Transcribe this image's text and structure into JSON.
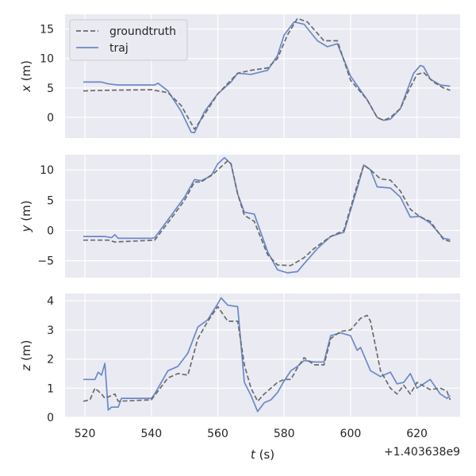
{
  "chart_data": [
    {
      "type": "line",
      "ylabel_var": "x",
      "ylabel_unit": " (m)",
      "ylim": [
        -3.5,
        17.5
      ],
      "yticks": [
        0,
        5,
        10,
        15
      ],
      "legend": "top-left",
      "series": [
        {
          "name": "groundtruth",
          "style": "dashed",
          "color": "#6b6b6b",
          "x": [
            519.5,
            526,
            540,
            545,
            549,
            553,
            556,
            560,
            566,
            570,
            575,
            578,
            581,
            584,
            587,
            592,
            596,
            600,
            605,
            608,
            610,
            612,
            615,
            617,
            620,
            622,
            625,
            628,
            630
          ],
          "y": [
            4.5,
            4.6,
            4.7,
            4.2,
            2,
            -2,
            0.5,
            4,
            7.5,
            8,
            8.4,
            10,
            14,
            16.8,
            16.2,
            13,
            13,
            6.3,
            3,
            0,
            -0.5,
            0,
            1.5,
            4,
            7.3,
            7.6,
            6,
            5,
            4.6
          ]
        },
        {
          "name": "traj",
          "style": "solid",
          "color": "#6a89c8",
          "x": [
            519.5,
            525,
            527,
            530,
            541,
            542,
            545,
            549,
            552,
            553,
            556,
            560,
            564,
            566,
            570,
            575,
            578,
            580,
            583,
            586,
            590,
            593,
            596,
            600,
            605,
            608,
            610,
            612,
            615,
            617,
            619,
            621,
            622,
            624,
            627,
            630
          ],
          "y": [
            6,
            6,
            5.7,
            5.5,
            5.5,
            5.8,
            4.5,
            1,
            -2.5,
            -2.6,
            1,
            4,
            6,
            7.5,
            7.3,
            8,
            10.5,
            14,
            16.2,
            15.8,
            13,
            12,
            12.5,
            7,
            3,
            0,
            -0.5,
            -0.3,
            1.5,
            4.5,
            7.5,
            8.8,
            8.6,
            6.5,
            5.5,
            5.3
          ]
        }
      ]
    },
    {
      "type": "line",
      "ylabel_var": "y",
      "ylabel_unit": " (m)",
      "ylim": [
        -7.8,
        12.5
      ],
      "yticks": [
        -5,
        0,
        5,
        10
      ],
      "series": [
        {
          "name": "groundtruth",
          "style": "dashed",
          "color": "#6b6b6b",
          "x": [
            519.5,
            527,
            529,
            541,
            546,
            550,
            553,
            555,
            559,
            563,
            564,
            566,
            568,
            571,
            575,
            578,
            582,
            586,
            589,
            594,
            598,
            602,
            604,
            606,
            609,
            612,
            615,
            618,
            621,
            624,
            628,
            630
          ],
          "y": [
            -1.6,
            -1.6,
            -1.9,
            -1.6,
            2,
            5,
            8,
            8,
            9.5,
            11.5,
            11,
            6,
            2.5,
            1.5,
            -4,
            -5.7,
            -5.8,
            -4.5,
            -3,
            -1,
            0,
            7.5,
            10.8,
            10,
            8.5,
            8.3,
            6.5,
            3.5,
            2.2,
            1.5,
            -1.5,
            -1.8
          ]
        },
        {
          "name": "traj",
          "style": "solid",
          "color": "#6a89c8",
          "x": [
            519.5,
            526,
            528,
            529,
            530,
            540,
            541,
            546,
            550,
            553,
            555,
            558,
            560,
            562,
            564,
            566,
            568,
            571,
            575,
            578,
            581,
            584,
            586,
            590,
            594,
            598,
            602,
            604,
            606,
            608,
            612,
            615,
            618,
            621,
            624,
            628,
            630
          ],
          "y": [
            -1,
            -1,
            -1.2,
            -0.7,
            -1.3,
            -1.3,
            -1.2,
            2.5,
            5.5,
            8.4,
            8.2,
            9,
            11,
            12,
            11,
            6,
            3,
            2.7,
            -3.5,
            -6.5,
            -7,
            -6.8,
            -5.5,
            -3,
            -1,
            -0.3,
            7,
            10.8,
            10,
            7.2,
            7,
            5.5,
            2.2,
            2.3,
            1.2,
            -1.3,
            -1.5
          ]
        }
      ]
    },
    {
      "type": "line",
      "ylabel_var": "z",
      "ylabel_unit": " (m)",
      "xlabel_var": "t",
      "xlabel_unit": " (s)",
      "xlim": [
        514,
        633
      ],
      "xticks": [
        520,
        540,
        560,
        580,
        600,
        620
      ],
      "offset_label": "+1.403638e9",
      "ylim": [
        0,
        4.25
      ],
      "yticks": [
        0,
        1,
        2,
        3,
        4
      ],
      "series": [
        {
          "name": "groundtruth",
          "style": "dashed",
          "color": "#6b6b6b",
          "x": [
            519.5,
            521.5,
            523,
            525,
            526,
            527,
            529,
            530,
            540,
            545,
            548,
            551,
            554,
            557,
            560,
            563,
            566,
            568,
            570,
            572,
            574,
            576,
            578,
            580,
            582,
            584,
            586,
            589,
            592,
            594,
            597,
            600,
            603,
            605,
            606,
            609,
            612,
            614,
            616,
            618,
            620,
            624,
            627,
            629,
            630
          ],
          "y": [
            0.55,
            0.6,
            1,
            0.8,
            0.65,
            0.7,
            0.8,
            0.55,
            0.6,
            1.35,
            1.5,
            1.45,
            2.7,
            3.3,
            3.8,
            3.3,
            3.3,
            1.8,
            1,
            0.55,
            0.8,
            1,
            1.2,
            1.3,
            1.3,
            1.7,
            2.05,
            1.8,
            1.8,
            2.7,
            2.95,
            3,
            3.4,
            3.5,
            3.3,
            1.6,
            1,
            0.8,
            1.1,
            0.8,
            1.2,
            0.95,
            1,
            0.9,
            0.6
          ]
        },
        {
          "name": "traj",
          "style": "solid",
          "color": "#6a89c8",
          "x": [
            519.5,
            523,
            524,
            525,
            526,
            527,
            528,
            530,
            531,
            540,
            541,
            545,
            548,
            551,
            554,
            557,
            560,
            561,
            563,
            566,
            568,
            570,
            572,
            574,
            576,
            578,
            580,
            582,
            584,
            586,
            589,
            592,
            594,
            597,
            600,
            602,
            603,
            606,
            609,
            612,
            614,
            616,
            618,
            620,
            624,
            627,
            629,
            630
          ],
          "y": [
            1.3,
            1.3,
            1.55,
            1.45,
            1.85,
            0.25,
            0.35,
            0.35,
            0.65,
            0.65,
            0.8,
            1.6,
            1.75,
            2.2,
            3.1,
            3.35,
            3.9,
            4.1,
            3.85,
            3.8,
            1.2,
            0.75,
            0.2,
            0.5,
            0.6,
            0.85,
            1.25,
            1.6,
            1.75,
            1.95,
            1.9,
            1.9,
            2.8,
            2.9,
            2.8,
            2.3,
            2.4,
            1.6,
            1.4,
            1.55,
            1.15,
            1.2,
            1.5,
            1,
            1.3,
            0.8,
            0.65,
            0.75
          ]
        }
      ]
    }
  ]
}
